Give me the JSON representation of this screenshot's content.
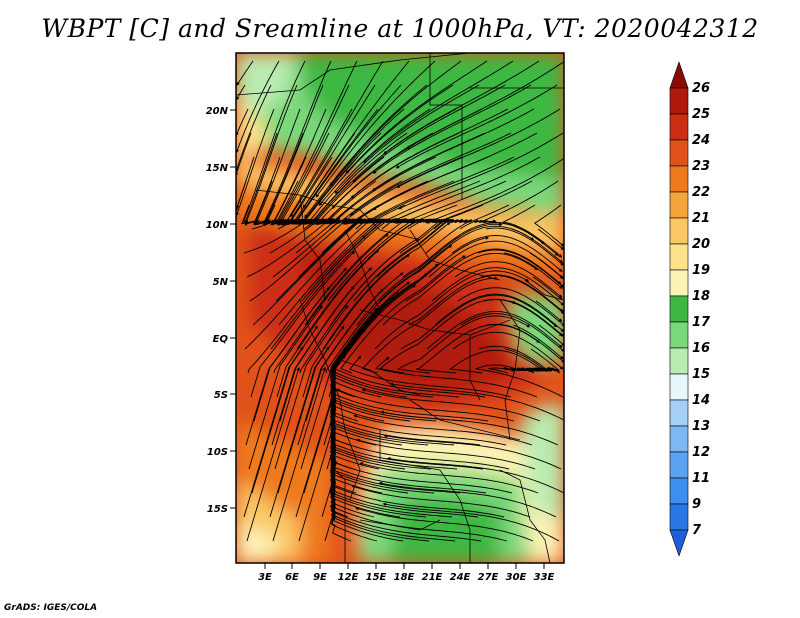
{
  "title": "WBPT [C] and Sreamline at 1000hPa, VT: 2020042312",
  "credit": "GrADS: IGES/COLA",
  "map": {
    "lat_labels": [
      "20N",
      "15N",
      "10N",
      "5N",
      "EQ",
      "5S",
      "10S",
      "15S"
    ],
    "lon_labels": [
      "3E",
      "6E",
      "9E",
      "12E",
      "15E",
      "18E",
      "21E",
      "24E",
      "27E",
      "30E",
      "33E"
    ]
  },
  "colorbar": {
    "levels": [
      "7",
      "9",
      "11",
      "12",
      "13",
      "14",
      "15",
      "16",
      "17",
      "18",
      "19",
      "20",
      "21",
      "22",
      "23",
      "24",
      "25",
      "26"
    ],
    "colors": [
      "#1e5fd9",
      "#2a78e6",
      "#3c8ef0",
      "#5aa3f2",
      "#7cb8f5",
      "#a6d1f7",
      "#e6f6fa",
      "#b9ecb0",
      "#7ad87a",
      "#3db843",
      "#fbf3b4",
      "#fde28c",
      "#fbc764",
      "#f5a43c",
      "#ef7a1e",
      "#e1521a",
      "#cc2e12",
      "#b01a0c",
      "#8c0a06"
    ]
  }
}
